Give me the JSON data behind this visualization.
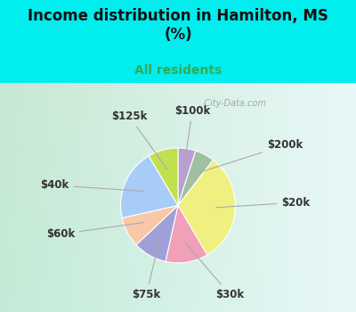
{
  "title": "Income distribution in Hamilton, MS\n(%)",
  "subtitle": "All residents",
  "title_color": "#111111",
  "subtitle_color": "#33aa55",
  "background_top": "#00eeee",
  "labels": [
    "$100k",
    "$200k",
    "$20k",
    "$30k",
    "$75k",
    "$60k",
    "$40k",
    "$125k"
  ],
  "values": [
    5.0,
    5.5,
    31.0,
    12.0,
    9.5,
    8.5,
    20.0,
    8.5
  ],
  "colors": [
    "#b8a0d0",
    "#a0c0a0",
    "#f0f080",
    "#f0a0b8",
    "#a0a0d8",
    "#f8c8a8",
    "#a8ccf8",
    "#c0e050"
  ],
  "startangle": 90,
  "counterclock": false,
  "watermark": "  City-Data.com",
  "chart_bg_left": "#c8e8d0",
  "chart_bg_right": "#e8f8f8",
  "label_color": "#333333",
  "label_fontsize": 8.5,
  "title_fontsize": 12,
  "subtitle_fontsize": 10,
  "edge_color": "white",
  "edge_width": 0.8
}
